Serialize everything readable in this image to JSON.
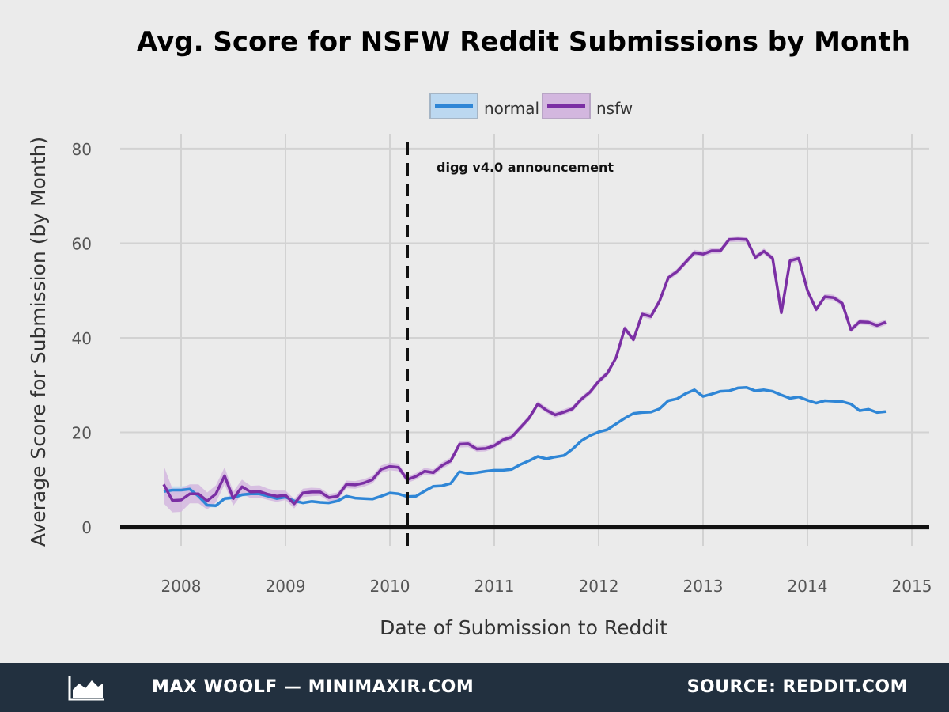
{
  "chart_data": {
    "type": "line",
    "title": "Avg. Score for NSFW Reddit Submissions by Month",
    "xlabel": "Date of Submission to Reddit",
    "ylabel": "Average Score for Submission (by Month)",
    "x_ticks": [
      "2008",
      "2009",
      "2010",
      "2011",
      "2012",
      "2013",
      "2014",
      "2015"
    ],
    "y_ticks": [
      "0",
      "20",
      "40",
      "60",
      "80"
    ],
    "xlim": [
      "2007-06",
      "2015-03"
    ],
    "ylim": [
      -4,
      83
    ],
    "grid": true,
    "legend_position": "top-center",
    "annotation": {
      "label": "digg v4.0 announcement",
      "x": "2010-03"
    },
    "x": [
      "2007-11",
      "2007-12",
      "2008-01",
      "2008-02",
      "2008-03",
      "2008-04",
      "2008-05",
      "2008-06",
      "2008-07",
      "2008-08",
      "2008-09",
      "2008-10",
      "2008-11",
      "2008-12",
      "2009-01",
      "2009-02",
      "2009-03",
      "2009-04",
      "2009-05",
      "2009-06",
      "2009-07",
      "2009-08",
      "2009-09",
      "2009-10",
      "2009-11",
      "2009-12",
      "2010-01",
      "2010-02",
      "2010-03",
      "2010-04",
      "2010-05",
      "2010-06",
      "2010-07",
      "2010-08",
      "2010-09",
      "2010-10",
      "2010-11",
      "2010-12",
      "2011-01",
      "2011-02",
      "2011-03",
      "2011-04",
      "2011-05",
      "2011-06",
      "2011-07",
      "2011-08",
      "2011-09",
      "2011-10",
      "2011-11",
      "2011-12",
      "2012-01",
      "2012-02",
      "2012-03",
      "2012-04",
      "2012-05",
      "2012-06",
      "2012-07",
      "2012-08",
      "2012-09",
      "2012-10",
      "2012-11",
      "2012-12",
      "2013-01",
      "2013-02",
      "2013-03",
      "2013-04",
      "2013-05",
      "2013-06",
      "2013-07",
      "2013-08",
      "2013-09",
      "2013-10",
      "2013-11",
      "2013-12",
      "2014-01",
      "2014-02",
      "2014-03",
      "2014-04",
      "2014-05",
      "2014-06",
      "2014-07",
      "2014-08",
      "2014-09",
      "2014-10"
    ],
    "series": [
      {
        "name": "normal",
        "color": "#2f86d6",
        "band_color": "#bcd8f0",
        "values": [
          7.5,
          7.8,
          7.8,
          8.0,
          6.5,
          4.6,
          4.5,
          6.0,
          6.2,
          6.8,
          7.0,
          7.0,
          6.5,
          6.0,
          6.3,
          5.5,
          5.1,
          5.4,
          5.2,
          5.1,
          5.5,
          6.5,
          6.1,
          6.0,
          5.9,
          6.5,
          7.2,
          7.0,
          6.4,
          6.5,
          7.6,
          8.6,
          8.7,
          9.2,
          11.7,
          11.3,
          11.5,
          11.8,
          12.0,
          12.0,
          12.2,
          13.2,
          14.0,
          14.9,
          14.4,
          14.8,
          15.1,
          16.5,
          18.2,
          19.3,
          20.1,
          20.6,
          21.8,
          23.0,
          24.0,
          24.2,
          24.3,
          25.0,
          26.7,
          27.1,
          28.2,
          29.0,
          27.6,
          28.1,
          28.7,
          28.8,
          29.4,
          29.5,
          28.8,
          29.0,
          28.7,
          27.9,
          27.2,
          27.5,
          26.8,
          26.2,
          26.7,
          26.6,
          26.5,
          26.0,
          24.6,
          24.9,
          24.2,
          24.4
        ],
        "band": [
          1.0,
          0.8,
          0.8,
          0.8,
          0.6,
          0.4,
          0.4,
          0.4,
          0.4,
          0.4,
          0.4,
          0.4,
          0.3,
          0.3,
          0.3,
          0.3,
          0.3,
          0.3,
          0.3,
          0.3,
          0.3,
          0.3,
          0.3,
          0.3,
          0.3,
          0.3,
          0.3,
          0.3,
          0.2,
          0.2,
          0.2,
          0.2,
          0.2,
          0.2,
          0.2,
          0.2,
          0.2,
          0.2,
          0.2,
          0.2,
          0.2,
          0.2,
          0.2,
          0.2,
          0.2,
          0.2,
          0.2,
          0.2,
          0.2,
          0.2,
          0.2,
          0.2,
          0.2,
          0.2,
          0.2,
          0.2,
          0.2,
          0.2,
          0.2,
          0.2,
          0.2,
          0.2,
          0.2,
          0.2,
          0.2,
          0.2,
          0.2,
          0.2,
          0.2,
          0.2,
          0.2,
          0.2,
          0.2,
          0.2,
          0.2,
          0.2,
          0.2,
          0.2,
          0.2,
          0.2,
          0.2,
          0.2,
          0.2,
          0.2
        ]
      },
      {
        "name": "nsfw",
        "color": "#7b2fa4",
        "band_color": "#d3b7df",
        "values": [
          9.0,
          5.6,
          5.7,
          7.0,
          7.0,
          5.5,
          7.0,
          10.8,
          6.0,
          8.5,
          7.4,
          7.5,
          6.9,
          6.5,
          6.7,
          4.9,
          7.2,
          7.4,
          7.4,
          6.2,
          6.5,
          9.0,
          8.9,
          9.3,
          10.0,
          12.2,
          12.8,
          12.6,
          10.0,
          10.7,
          11.8,
          11.5,
          13.0,
          14.0,
          17.5,
          17.6,
          16.5,
          16.6,
          17.2,
          18.4,
          19.0,
          21.0,
          23.0,
          26.0,
          24.7,
          23.7,
          24.3,
          25.0,
          27.0,
          28.5,
          30.8,
          32.5,
          35.8,
          42.0,
          39.6,
          45.0,
          44.5,
          47.8,
          52.7,
          54.0,
          56.0,
          58.0,
          57.7,
          58.4,
          58.4,
          60.8,
          60.9,
          60.8,
          57.0,
          58.3,
          56.8,
          45.3,
          56.3,
          56.8,
          50.0,
          46.0,
          48.7,
          48.5,
          47.3,
          41.7,
          43.4,
          43.3,
          42.6,
          43.3
        ],
        "band": [
          4.0,
          2.5,
          2.5,
          2.0,
          2.0,
          1.8,
          1.8,
          1.8,
          1.5,
          1.5,
          1.3,
          1.3,
          1.2,
          1.2,
          1.0,
          1.0,
          0.9,
          0.9,
          0.8,
          0.8,
          0.8,
          0.8,
          0.8,
          0.8,
          0.8,
          0.8,
          0.8,
          0.8,
          0.7,
          0.7,
          0.7,
          0.7,
          0.7,
          0.7,
          0.7,
          0.7,
          0.6,
          0.6,
          0.6,
          0.6,
          0.6,
          0.6,
          0.6,
          0.6,
          0.6,
          0.6,
          0.6,
          0.6,
          0.6,
          0.6,
          0.6,
          0.6,
          0.6,
          0.6,
          0.6,
          0.6,
          0.6,
          0.6,
          0.6,
          0.6,
          0.6,
          0.6,
          0.6,
          0.6,
          0.6,
          0.6,
          0.6,
          0.6,
          0.6,
          0.6,
          0.6,
          0.6,
          0.6,
          0.6,
          0.6,
          0.6,
          0.6,
          0.6,
          0.6,
          0.6,
          0.6,
          0.6,
          0.6,
          0.6
        ]
      }
    ]
  },
  "footer": {
    "left_text": "MAX WOOLF — MINIMAXIR.COM",
    "right_text": "SOURCE: REDDIT.COM",
    "logo_icon": "area-chart-logo-icon"
  }
}
